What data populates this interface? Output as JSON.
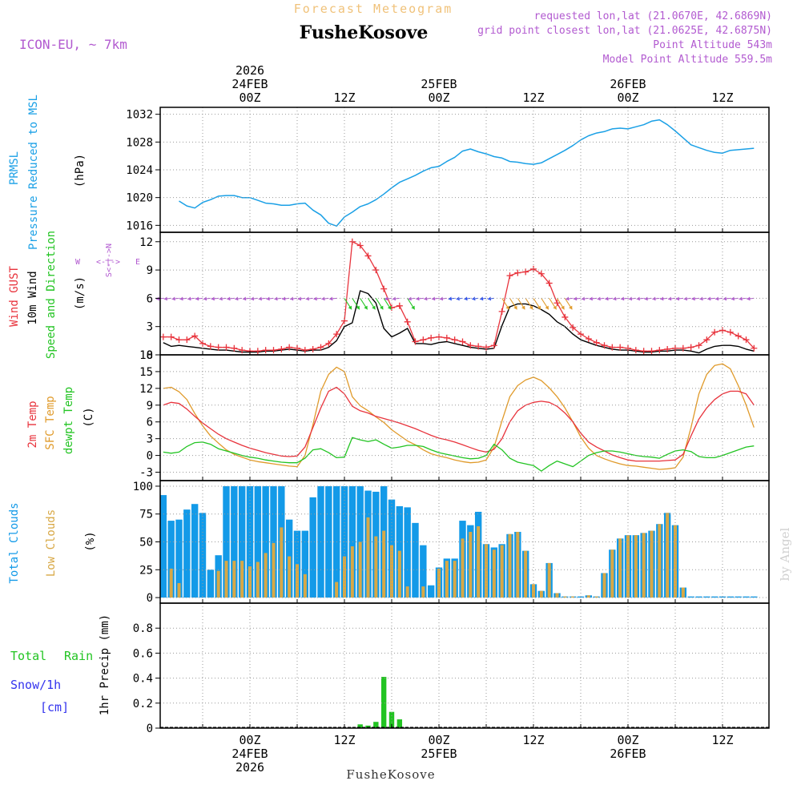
{
  "header": {
    "title": "Forecast Meteogram",
    "location": "FusheKosove",
    "model": "ICON-EU, ~ 7km",
    "requested": "requested lon,lat (21.0670E, 42.6869N)",
    "closest": "grid point closest lon,lat (21.0625E, 42.6875N)",
    "point_alt": "Point Altitude 543m",
    "model_alt": "Model Point Altitude 559.5m",
    "footer_location": "FusheKosove",
    "watermark": "by Angel"
  },
  "time_axis": {
    "top_ticks": [
      {
        "h": 0,
        "lines": [
          "2026",
          "24FEB",
          "00Z"
        ]
      },
      {
        "h": 12,
        "lines": [
          "12Z"
        ]
      },
      {
        "h": 24,
        "lines": [
          "25FEB",
          "00Z"
        ]
      },
      {
        "h": 36,
        "lines": [
          "12Z"
        ]
      },
      {
        "h": 48,
        "lines": [
          "26FEB",
          "00Z"
        ]
      },
      {
        "h": 60,
        "lines": [
          "12Z"
        ]
      }
    ],
    "bottom_ticks": [
      {
        "h": 0,
        "lines": [
          "00Z",
          "24FEB",
          "2026"
        ]
      },
      {
        "h": 12,
        "lines": [
          "12Z"
        ]
      },
      {
        "h": 24,
        "lines": [
          "00Z",
          "25FEB"
        ]
      },
      {
        "h": 36,
        "lines": [
          "12Z"
        ]
      },
      {
        "h": 48,
        "lines": [
          "00Z",
          "26FEB"
        ]
      },
      {
        "h": 60,
        "lines": [
          "12Z"
        ]
      }
    ]
  },
  "labels": {
    "prmsl_a": "PRMSL",
    "prmsl_b": "Pressure Reduced to MSL",
    "prmsl_unit": "(hPa)",
    "gust": "Wind GUST",
    "wind10": "10m Wind",
    "winddir": "Speed and Direction",
    "wind_unit": "(m/s)",
    "compass_n": "N",
    "compass_s": "S",
    "compass_w": "W",
    "compass_e": "E",
    "compass_ns": "S<-|->N",
    "compass_we": "<-|->",
    "t2m": "2m Temp",
    "tsfc": "SFC Temp",
    "tdew": "dewpt Temp",
    "temp_unit": "(C)",
    "total_clouds": "Total Clouds",
    "low_clouds": "Low Clouds",
    "cloud_unit": "(%)",
    "total_rain_a": "Total",
    "total_rain_b": "Rain",
    "snow": "Snow/1h",
    "snow_unit": "[cm]",
    "precip_unit": "1hr Precip (mm)"
  },
  "colors": {
    "pressure": "#1aa0e6",
    "gust": "#e8333c",
    "wind10": "#000000",
    "t2m": "#e8333c",
    "tsfc": "#e09a2a",
    "tdew": "#22c422",
    "total_clouds": "#139ae8",
    "low_clouds": "#d8a845",
    "rain": "#22c422",
    "snow": "#3333ee",
    "magenta": "#b25ad0"
  },
  "chart_data": [
    {
      "type": "line",
      "title": "PRMSL Pressure Reduced to MSL",
      "ylabel": "(hPa)",
      "ylim": [
        1015,
        1033
      ],
      "yticks": [
        1016,
        1020,
        1024,
        1028,
        1032
      ],
      "x_hours": [
        -9,
        -8,
        -7,
        -6,
        -5,
        -4,
        -3,
        -2,
        -1,
        0,
        1,
        2,
        3,
        4,
        5,
        6,
        7,
        8,
        9,
        10,
        11,
        12,
        13,
        14,
        15,
        16,
        17,
        18,
        19,
        20,
        21,
        22,
        23,
        24,
        25,
        26,
        27,
        28,
        29,
        30,
        31,
        32,
        33,
        34,
        35,
        36,
        37,
        38,
        39,
        40,
        41,
        42,
        43,
        44,
        45,
        46,
        47,
        48,
        49,
        50,
        51,
        52,
        53,
        54,
        55,
        56,
        57,
        58,
        59,
        60,
        61,
        62,
        63,
        64
      ],
      "series": [
        {
          "name": "PRMSL",
          "values": [
            1019.5,
            1018.8,
            1018.5,
            1019.3,
            1019.7,
            1020.2,
            1020.3,
            1020.3,
            1020.0,
            1020.0,
            1019.6,
            1019.2,
            1019.1,
            1018.9,
            1018.9,
            1019.1,
            1019.2,
            1018.2,
            1017.5,
            1016.3,
            1015.9,
            1017.2,
            1017.9,
            1018.7,
            1019.1,
            1019.7,
            1020.5,
            1021.4,
            1022.2,
            1022.7,
            1023.2,
            1023.8,
            1024.3,
            1024.5,
            1025.2,
            1025.8,
            1026.7,
            1027.0,
            1026.6,
            1026.3,
            1025.9,
            1025.7,
            1025.2,
            1025.1,
            1024.9,
            1024.8,
            1025.0,
            1025.6,
            1026.2,
            1026.8,
            1027.5,
            1028.3,
            1028.9,
            1029.3,
            1029.5,
            1029.9,
            1030.0,
            1029.9,
            1030.2,
            1030.5,
            1031.0,
            1031.2,
            1030.5,
            1029.6,
            1028.6,
            1027.6,
            1027.2,
            1026.8,
            1026.5,
            1026.4,
            1026.8,
            1026.9,
            1027.0,
            1027.1
          ]
        }
      ]
    },
    {
      "type": "line",
      "title": "Wind GUST / 10m Wind Speed and Direction",
      "ylabel": "(m/s)",
      "ylim": [
        0,
        13
      ],
      "yticks": [
        0,
        3,
        6,
        9,
        12
      ],
      "x_hours": [
        -11,
        -10,
        -9,
        -8,
        -7,
        -6,
        -5,
        -4,
        -3,
        -2,
        -1,
        0,
        1,
        2,
        3,
        4,
        5,
        6,
        7,
        8,
        9,
        10,
        11,
        12,
        13,
        14,
        15,
        16,
        17,
        18,
        19,
        20,
        21,
        22,
        23,
        24,
        25,
        26,
        27,
        28,
        29,
        30,
        31,
        32,
        33,
        34,
        35,
        36,
        37,
        38,
        39,
        40,
        41,
        42,
        43,
        44,
        45,
        46,
        47,
        48,
        49,
        50,
        51,
        52,
        53,
        54,
        55,
        56,
        57,
        58,
        59,
        60,
        61,
        62,
        63,
        64
      ],
      "series": [
        {
          "name": "Wind GUST",
          "values": [
            1.9,
            1.9,
            1.6,
            1.6,
            2.0,
            1.2,
            0.9,
            0.8,
            0.8,
            0.7,
            0.5,
            0.4,
            0.4,
            0.5,
            0.5,
            0.6,
            0.8,
            0.7,
            0.5,
            0.6,
            0.8,
            1.2,
            2.2,
            3.6,
            12.0,
            11.6,
            10.5,
            9.0,
            7.0,
            5.0,
            5.2,
            3.5,
            1.4,
            1.6,
            1.8,
            1.9,
            1.8,
            1.6,
            1.4,
            1.0,
            0.9,
            0.8,
            1.0,
            4.6,
            8.4,
            8.7,
            8.8,
            9.1,
            8.6,
            7.6,
            5.5,
            4.0,
            2.9,
            2.2,
            1.7,
            1.3,
            1.0,
            0.8,
            0.8,
            0.7,
            0.5,
            0.4,
            0.4,
            0.5,
            0.6,
            0.7,
            0.7,
            0.8,
            1.0,
            1.6,
            2.4,
            2.6,
            2.4,
            2.0,
            1.6,
            0.7
          ]
        },
        {
          "name": "10m Wind",
          "values": [
            1.3,
            0.9,
            1.0,
            0.9,
            0.8,
            0.7,
            0.6,
            0.5,
            0.5,
            0.4,
            0.3,
            0.3,
            0.3,
            0.4,
            0.4,
            0.5,
            0.6,
            0.5,
            0.4,
            0.5,
            0.5,
            0.8,
            1.5,
            3.0,
            3.4,
            6.8,
            6.5,
            5.5,
            2.8,
            1.9,
            2.3,
            2.8,
            1.2,
            1.2,
            1.1,
            1.3,
            1.4,
            1.2,
            1.0,
            0.8,
            0.7,
            0.6,
            0.7,
            3.1,
            5.1,
            5.4,
            5.4,
            5.2,
            4.8,
            4.3,
            3.5,
            3.0,
            2.2,
            1.6,
            1.3,
            1.0,
            0.8,
            0.6,
            0.5,
            0.5,
            0.4,
            0.3,
            0.3,
            0.4,
            0.4,
            0.5,
            0.5,
            0.4,
            0.2,
            0.6,
            0.9,
            1.0,
            1.0,
            0.9,
            0.6,
            0.4
          ]
        }
      ]
    },
    {
      "type": "line",
      "title": "2m Temp / SFC Temp / dewpt Temp",
      "ylabel": "(C)",
      "ylim": [
        -4.5,
        18
      ],
      "yticks": [
        -3,
        0,
        3,
        6,
        9,
        12,
        15,
        18
      ],
      "x_hours": [
        -11,
        -10,
        -9,
        -8,
        -7,
        -6,
        -5,
        -4,
        -3,
        -2,
        -1,
        0,
        1,
        2,
        3,
        4,
        5,
        6,
        7,
        8,
        9,
        10,
        11,
        12,
        13,
        14,
        15,
        16,
        17,
        18,
        19,
        20,
        21,
        22,
        23,
        24,
        25,
        26,
        27,
        28,
        29,
        30,
        31,
        32,
        33,
        34,
        35,
        36,
        37,
        38,
        39,
        40,
        41,
        42,
        43,
        44,
        45,
        46,
        47,
        48,
        49,
        50,
        51,
        52,
        53,
        54,
        55,
        56,
        57,
        58,
        59,
        60,
        61,
        62,
        63,
        64
      ],
      "series": [
        {
          "name": "2m Temp",
          "values": [
            9.0,
            9.5,
            9.3,
            8.3,
            7.0,
            5.8,
            4.8,
            3.8,
            3.0,
            2.4,
            1.8,
            1.3,
            0.9,
            0.5,
            0.2,
            -0.1,
            -0.2,
            -0.1,
            1.5,
            5.0,
            8.5,
            11.5,
            12.2,
            11.0,
            8.8,
            8.0,
            7.6,
            7.0,
            6.6,
            6.2,
            5.8,
            5.3,
            4.8,
            4.2,
            3.6,
            3.1,
            2.8,
            2.4,
            1.9,
            1.4,
            0.9,
            0.6,
            1.1,
            3.0,
            6.0,
            8.0,
            9.0,
            9.5,
            9.7,
            9.5,
            8.8,
            7.6,
            6.0,
            4.0,
            2.4,
            1.5,
            0.8,
            0.1,
            -0.4,
            -0.8,
            -1.0,
            -1.0,
            -1.0,
            -1.0,
            -0.9,
            -0.8,
            0.2,
            3.5,
            6.5,
            8.5,
            10.0,
            11.0,
            11.5,
            11.5,
            11.0,
            9.0
          ]
        },
        {
          "name": "SFC Temp",
          "values": [
            12.0,
            12.2,
            11.4,
            10.0,
            7.5,
            5.3,
            3.5,
            2.2,
            1.0,
            0.2,
            -0.3,
            -0.8,
            -1.1,
            -1.3,
            -1.5,
            -1.7,
            -1.9,
            -2.0,
            0.0,
            5.5,
            11.5,
            14.5,
            15.8,
            15.0,
            10.5,
            8.9,
            8.0,
            6.9,
            5.9,
            4.6,
            3.6,
            2.6,
            1.9,
            1.0,
            0.3,
            -0.1,
            -0.4,
            -0.8,
            -1.1,
            -1.3,
            -1.2,
            -0.8,
            1.5,
            6.2,
            10.5,
            12.5,
            13.5,
            14.0,
            13.4,
            12.1,
            10.5,
            8.5,
            6.0,
            3.3,
            1.3,
            0.0,
            -0.6,
            -1.1,
            -1.5,
            -1.8,
            -1.9,
            -2.1,
            -2.3,
            -2.5,
            -2.4,
            -2.2,
            -0.3,
            5.0,
            11.0,
            14.5,
            16.1,
            16.4,
            15.5,
            12.5,
            9.0,
            5.0
          ]
        },
        {
          "name": "dewpt Temp",
          "values": [
            0.6,
            0.4,
            0.6,
            1.6,
            2.3,
            2.4,
            2.0,
            1.2,
            0.8,
            0.4,
            0.0,
            -0.3,
            -0.5,
            -0.8,
            -1.0,
            -1.2,
            -1.3,
            -1.3,
            -0.5,
            1.0,
            1.2,
            0.5,
            -0.4,
            -0.3,
            3.2,
            2.8,
            2.5,
            2.8,
            2.0,
            1.3,
            1.5,
            1.8,
            1.8,
            1.6,
            1.0,
            0.5,
            0.2,
            -0.1,
            -0.4,
            -0.6,
            -0.5,
            0.0,
            2.0,
            1.0,
            -0.5,
            -1.2,
            -1.5,
            -1.8,
            -2.8,
            -1.8,
            -1.0,
            -1.5,
            -2.0,
            -1.0,
            0.0,
            0.5,
            0.8,
            0.8,
            0.6,
            0.3,
            0.0,
            -0.2,
            -0.3,
            -0.5,
            0.2,
            0.8,
            1.0,
            0.7,
            -0.2,
            -0.4,
            -0.4,
            0.0,
            0.5,
            1.0,
            1.5,
            1.7
          ]
        }
      ]
    },
    {
      "type": "bar",
      "title": "Total Clouds / Low Clouds",
      "ylabel": "(%)",
      "ylim": [
        -5,
        105
      ],
      "yticks": [
        0,
        25,
        50,
        75,
        100
      ],
      "x_hours": [
        -11,
        -10,
        -9,
        -8,
        -7,
        -6,
        -5,
        -4,
        -3,
        -2,
        -1,
        0,
        1,
        2,
        3,
        4,
        5,
        6,
        7,
        8,
        9,
        10,
        11,
        12,
        13,
        14,
        15,
        16,
        17,
        18,
        19,
        20,
        21,
        22,
        23,
        24,
        25,
        26,
        27,
        28,
        29,
        30,
        31,
        32,
        33,
        34,
        35,
        36,
        37,
        38,
        39,
        40,
        41,
        42,
        43,
        44,
        45,
        46,
        47,
        48,
        49,
        50,
        51,
        52,
        53,
        54,
        55,
        56,
        57,
        58,
        59,
        60,
        61,
        62,
        63,
        64
      ],
      "series": [
        {
          "name": "Total Clouds",
          "values": [
            92,
            69,
            70,
            79,
            84,
            76,
            25,
            38,
            100,
            100,
            100,
            100,
            100,
            100,
            100,
            100,
            70,
            60,
            60,
            90,
            100,
            100,
            100,
            100,
            100,
            100,
            96,
            95,
            100,
            88,
            82,
            81,
            67,
            47,
            11,
            27,
            35,
            35,
            69,
            65,
            77,
            48,
            45,
            48,
            57,
            59,
            42,
            12,
            6,
            31,
            4,
            1,
            1,
            1,
            2,
            1,
            22,
            43,
            53,
            56,
            56,
            58,
            60,
            66,
            76,
            65,
            9,
            1,
            1,
            1,
            1,
            1,
            1,
            1,
            1,
            1
          ]
        },
        {
          "name": "Low Clouds",
          "values": [
            0,
            26,
            13,
            0,
            0,
            0,
            0,
            24,
            33,
            33,
            33,
            28,
            32,
            40,
            49,
            63,
            37,
            30,
            21,
            0,
            0,
            0,
            14,
            37,
            46,
            50,
            72,
            55,
            60,
            47,
            42,
            10,
            0,
            10,
            0,
            26,
            33,
            33,
            53,
            59,
            64,
            48,
            43,
            47,
            57,
            59,
            42,
            12,
            6,
            31,
            4,
            1,
            1,
            0,
            2,
            1,
            22,
            43,
            53,
            56,
            56,
            58,
            60,
            66,
            76,
            65,
            9,
            0,
            0,
            0,
            0,
            0,
            0,
            0,
            0,
            0
          ]
        }
      ]
    },
    {
      "type": "bar",
      "title": "Total Rain / Snow 1hr Precip",
      "ylabel": "1hr Precip (mm)",
      "ylim": [
        0,
        1.0
      ],
      "yticks": [
        0,
        0.2,
        0.4,
        0.6,
        0.8
      ],
      "x_hours": [
        14,
        15,
        16,
        17,
        18,
        19,
        20
      ],
      "series": [
        {
          "name": "Total Rain",
          "values": [
            0.03,
            0.02,
            0.05,
            0.41,
            0.13,
            0.07,
            0.0
          ]
        },
        {
          "name": "Snow/1h",
          "values": [
            0,
            0,
            0,
            0,
            0,
            0,
            0
          ]
        }
      ]
    }
  ]
}
